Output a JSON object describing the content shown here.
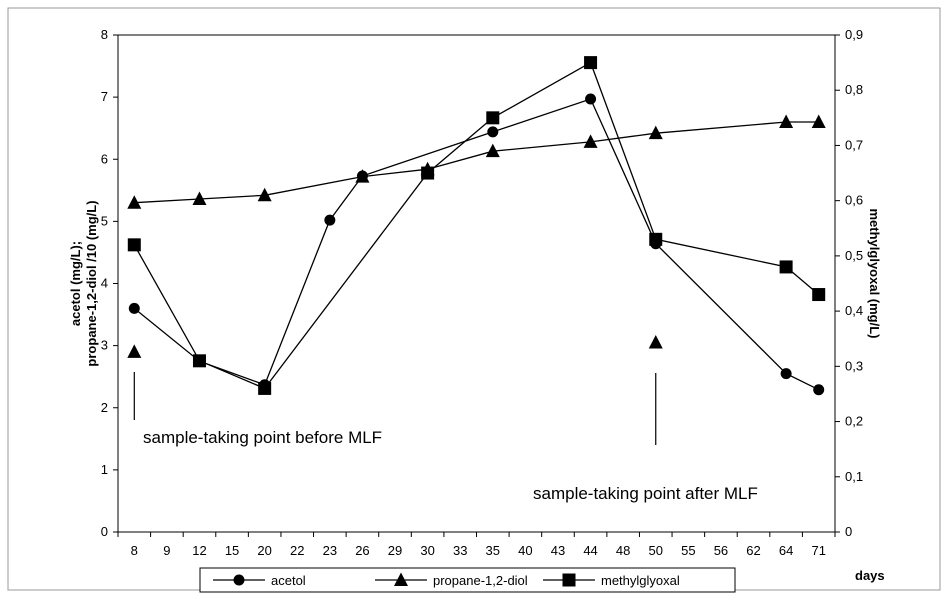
{
  "chart_data": {
    "type": "line",
    "x_categories": [
      "8",
      "9",
      "12",
      "15",
      "20",
      "22",
      "23",
      "26",
      "29",
      "30",
      "33",
      "35",
      "40",
      "43",
      "44",
      "48",
      "50",
      "55",
      "56",
      "62",
      "64",
      "71"
    ],
    "x_label": "days",
    "y_left_label_line1": "acetol (mg/L);",
    "y_left_label_line2": "propane-1,2-diol /10  (mg/L)",
    "y_right_label": "methylglyoxal (mg/L)",
    "y_left_range": [
      0,
      8
    ],
    "y_left_ticks": [
      "0",
      "1",
      "2",
      "3",
      "4",
      "5",
      "6",
      "7",
      "8"
    ],
    "y_right_range": [
      0,
      0.9
    ],
    "y_right_ticks": [
      "0",
      "0,1",
      "0,2",
      "0,3",
      "0,4",
      "0,5",
      "0,6",
      "0,7",
      "0,8",
      "0,9"
    ],
    "grid": false,
    "legend_position": "bottom",
    "series": [
      {
        "name": "acetol",
        "marker": "circle",
        "axis": "left",
        "points": [
          {
            "x": "8",
            "y": 3.6
          },
          {
            "x": "12",
            "y": 2.75
          },
          {
            "x": "20",
            "y": 2.37
          },
          {
            "x": "23",
            "y": 5.02
          },
          {
            "x": "26",
            "y": 5.73
          },
          {
            "x": "35",
            "y": 6.44
          },
          {
            "x": "44",
            "y": 6.97
          },
          {
            "x": "50",
            "y": 4.64
          },
          {
            "x": "64",
            "y": 2.55
          },
          {
            "x": "71",
            "y": 2.29
          }
        ]
      },
      {
        "name": "propane-1,2-diol",
        "marker": "triangle",
        "axis": "left",
        "points": [
          {
            "x": "8",
            "y": 5.3
          },
          {
            "x": "12",
            "y": 5.36
          },
          {
            "x": "20",
            "y": 5.42
          },
          {
            "x": "26",
            "y": 5.72
          },
          {
            "x": "30",
            "y": 5.84
          },
          {
            "x": "35",
            "y": 6.13
          },
          {
            "x": "44",
            "y": 6.28
          },
          {
            "x": "50",
            "y": 6.42
          },
          {
            "x": "64",
            "y": 6.6
          },
          {
            "x": "71",
            "y": 6.6
          }
        ]
      },
      {
        "name": "methylglyoxal",
        "marker": "square",
        "axis": "right",
        "points": [
          {
            "x": "8",
            "y": 0.52
          },
          {
            "x": "12",
            "y": 0.31
          },
          {
            "x": "20",
            "y": 0.26
          },
          {
            "x": "30",
            "y": 0.65
          },
          {
            "x": "35",
            "y": 0.75
          },
          {
            "x": "44",
            "y": 0.85
          },
          {
            "x": "50",
            "y": 0.53
          },
          {
            "x": "64",
            "y": 0.48
          },
          {
            "x": "71",
            "y": 0.43
          }
        ]
      }
    ],
    "isolated_markers": [
      {
        "x": "8",
        "y": 2.9,
        "marker": "triangle"
      },
      {
        "x": "50",
        "y": 3.05,
        "marker": "triangle"
      }
    ],
    "annotations": [
      {
        "text": "sample-taking point before MLF",
        "arrow_x": "8"
      },
      {
        "text": "sample-taking point after MLF",
        "arrow_x": "50"
      }
    ]
  }
}
